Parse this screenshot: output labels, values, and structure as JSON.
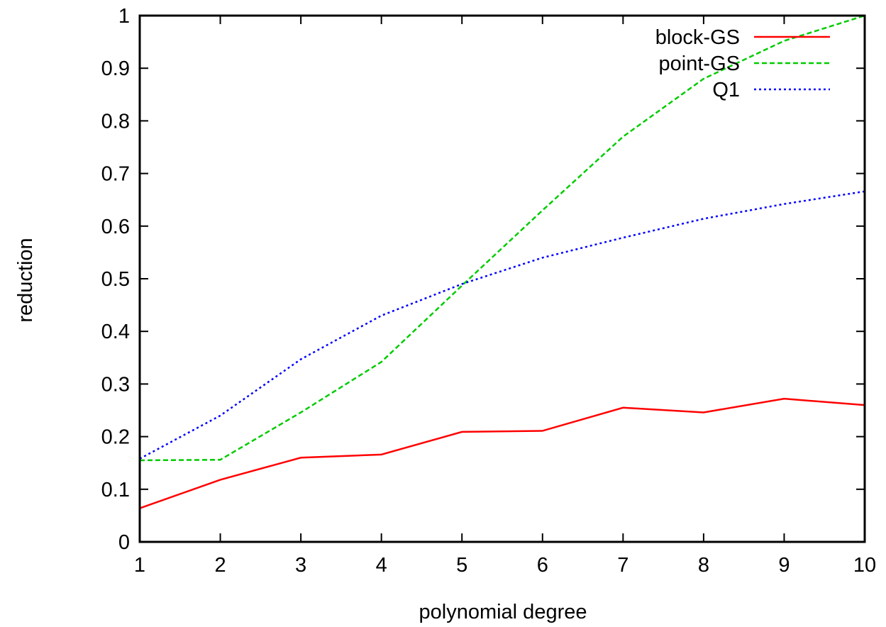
{
  "chart_data": {
    "type": "line",
    "title": "",
    "xlabel": "polynomial degree",
    "ylabel": "reduction",
    "xlim": [
      1,
      10
    ],
    "ylim": [
      0,
      1
    ],
    "x": [
      1,
      2,
      3,
      4,
      5,
      6,
      7,
      8,
      9,
      10
    ],
    "x_ticks": [
      "1",
      "2",
      "3",
      "4",
      "5",
      "6",
      "7",
      "8",
      "9",
      "10"
    ],
    "y_ticks": [
      "0",
      "0.1",
      "0.2",
      "0.3",
      "0.4",
      "0.5",
      "0.6",
      "0.7",
      "0.8",
      "0.9",
      "1"
    ],
    "grid": false,
    "legend_position": "top-right",
    "series": [
      {
        "name": "block-GS",
        "color": "#ff0000",
        "dash": "solid",
        "values": [
          0.064,
          0.118,
          0.16,
          0.166,
          0.209,
          0.211,
          0.255,
          0.246,
          0.272,
          0.26
        ]
      },
      {
        "name": "point-GS",
        "color": "#00cc00",
        "dash": "dashed",
        "values": [
          0.155,
          0.156,
          0.246,
          0.342,
          0.487,
          0.63,
          0.77,
          0.88,
          0.952,
          1.0
        ]
      },
      {
        "name": "Q1",
        "color": "#0000ff",
        "dash": "dotted",
        "values": [
          0.158,
          0.24,
          0.347,
          0.43,
          0.49,
          0.54,
          0.578,
          0.614,
          0.642,
          0.666
        ]
      }
    ]
  }
}
